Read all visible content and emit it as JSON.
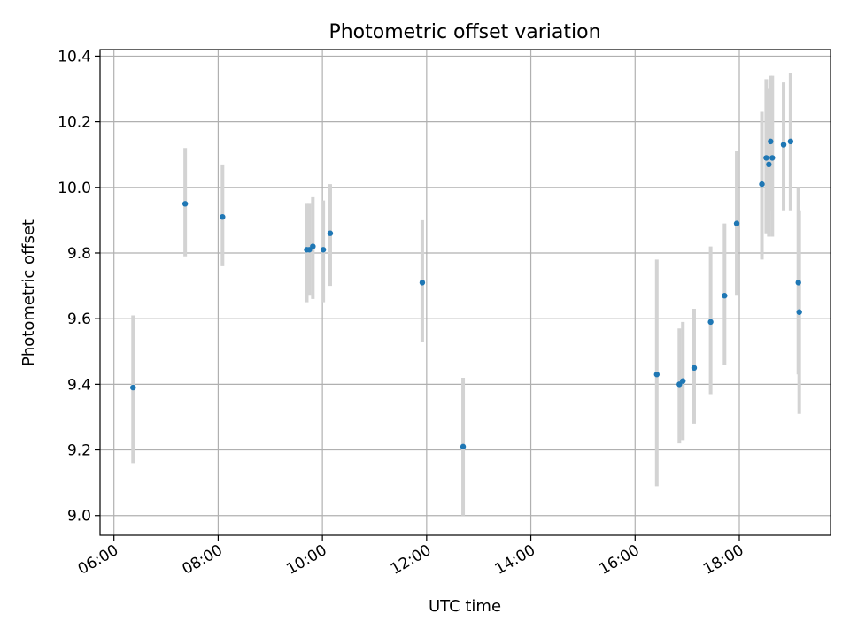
{
  "chart_data": {
    "type": "scatter",
    "title": "Photometric offset variation",
    "xlabel": "UTC time",
    "ylabel": "Photometric offset",
    "xlim": [
      "05:44",
      "19:45"
    ],
    "ylim": [
      8.94,
      10.42
    ],
    "x_ticks": [
      "06:00",
      "08:00",
      "10:00",
      "12:00",
      "14:00",
      "16:00",
      "18:00"
    ],
    "y_ticks": [
      "9.0",
      "9.2",
      "9.4",
      "9.6",
      "9.8",
      "10.0",
      "10.2",
      "10.4"
    ],
    "grid": true,
    "colors": {
      "marker": "#1f77b4",
      "errorbar": "#d3d3d3",
      "grid": "#b0b0b0"
    },
    "points": [
      {
        "t": "06:22",
        "y": 9.39,
        "lo": 9.16,
        "hi": 9.61
      },
      {
        "t": "07:22",
        "y": 9.95,
        "lo": 9.79,
        "hi": 10.12
      },
      {
        "t": "08:05",
        "y": 9.91,
        "lo": 9.76,
        "hi": 10.07
      },
      {
        "t": "09:42",
        "y": 9.81,
        "lo": 9.65,
        "hi": 9.95
      },
      {
        "t": "09:45",
        "y": 9.81,
        "lo": 9.67,
        "hi": 9.95
      },
      {
        "t": "09:49",
        "y": 9.82,
        "lo": 9.66,
        "hi": 9.97
      },
      {
        "t": "10:01",
        "y": 9.81,
        "lo": 9.65,
        "hi": 9.96
      },
      {
        "t": "10:09",
        "y": 9.86,
        "lo": 9.7,
        "hi": 10.01
      },
      {
        "t": "11:55",
        "y": 9.71,
        "lo": 9.53,
        "hi": 9.9
      },
      {
        "t": "12:42",
        "y": 9.21,
        "lo": 9.0,
        "hi": 9.42
      },
      {
        "t": "16:25",
        "y": 9.43,
        "lo": 9.09,
        "hi": 9.78
      },
      {
        "t": "16:51",
        "y": 9.4,
        "lo": 9.22,
        "hi": 9.57
      },
      {
        "t": "16:55",
        "y": 9.41,
        "lo": 9.23,
        "hi": 9.59
      },
      {
        "t": "17:08",
        "y": 9.45,
        "lo": 9.28,
        "hi": 9.63
      },
      {
        "t": "17:27",
        "y": 9.59,
        "lo": 9.37,
        "hi": 9.82
      },
      {
        "t": "17:43",
        "y": 9.67,
        "lo": 9.46,
        "hi": 9.89
      },
      {
        "t": "17:57",
        "y": 9.89,
        "lo": 9.67,
        "hi": 10.11
      },
      {
        "t": "18:26",
        "y": 10.01,
        "lo": 9.78,
        "hi": 10.23
      },
      {
        "t": "18:31",
        "y": 10.09,
        "lo": 9.86,
        "hi": 10.33
      },
      {
        "t": "18:34",
        "y": 10.07,
        "lo": 9.85,
        "hi": 10.3
      },
      {
        "t": "18:36",
        "y": 10.14,
        "lo": 9.93,
        "hi": 10.34
      },
      {
        "t": "18:38",
        "y": 10.09,
        "lo": 9.85,
        "hi": 10.34
      },
      {
        "t": "18:51",
        "y": 10.13,
        "lo": 9.93,
        "hi": 10.32
      },
      {
        "t": "18:59",
        "y": 10.14,
        "lo": 9.93,
        "hi": 10.35
      },
      {
        "t": "19:08",
        "y": 9.71,
        "lo": 9.43,
        "hi": 10.0
      },
      {
        "t": "19:09",
        "y": 9.62,
        "lo": 9.31,
        "hi": 9.93
      }
    ]
  }
}
